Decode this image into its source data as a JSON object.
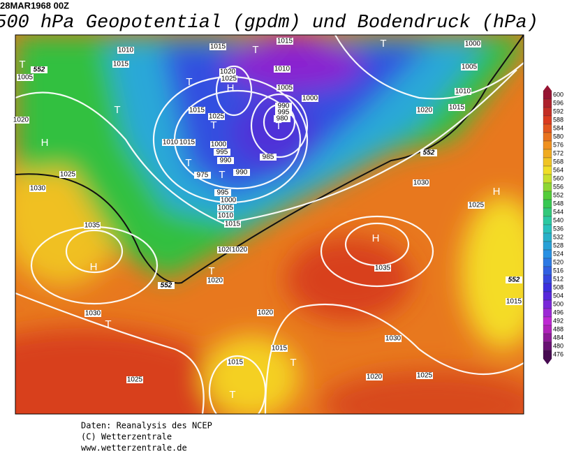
{
  "header": {
    "date": "28MAR1968 00Z",
    "title": "500 hPa Geopotential (gpdm) und Bodendruck (hPa)"
  },
  "map": {
    "labels": [
      "1010",
      "1015",
      "1015",
      "1000",
      "1005",
      "1015",
      "1020",
      "1025",
      "1010",
      "1005",
      "1005",
      "1010",
      "1000",
      "990",
      "995",
      "980",
      "1015",
      "1025",
      "1020",
      "1015",
      "1010",
      "1015",
      "1000",
      "995",
      "990",
      "985",
      "990",
      "975",
      "995",
      "1000",
      "1005",
      "1010",
      "1015",
      "1025",
      "1030",
      "1035",
      "1020",
      "1020",
      "1020",
      "1030",
      "1025",
      "1035",
      "1020",
      "1030",
      "1015",
      "1030",
      "1015",
      "1015",
      "1025",
      "1020",
      "1025",
      "1020",
      "552",
      "552",
      "552",
      "552",
      "T",
      "T",
      "T",
      "T",
      "T",
      "H",
      "T",
      "H",
      "T",
      "T",
      "T",
      "H",
      "T",
      "H",
      "H",
      "T",
      "T",
      "T"
    ]
  },
  "colorbar": {
    "ticks": [
      600,
      596,
      592,
      588,
      584,
      580,
      576,
      572,
      568,
      564,
      560,
      556,
      552,
      548,
      544,
      540,
      536,
      532,
      528,
      524,
      520,
      516,
      512,
      508,
      504,
      500,
      496,
      492,
      488,
      484,
      480,
      476
    ]
  },
  "footer": {
    "lines": [
      "Daten: Reanalysis des NCEP",
      "(C) Wetterzentrale",
      "www.wetterzentrale.de"
    ]
  }
}
